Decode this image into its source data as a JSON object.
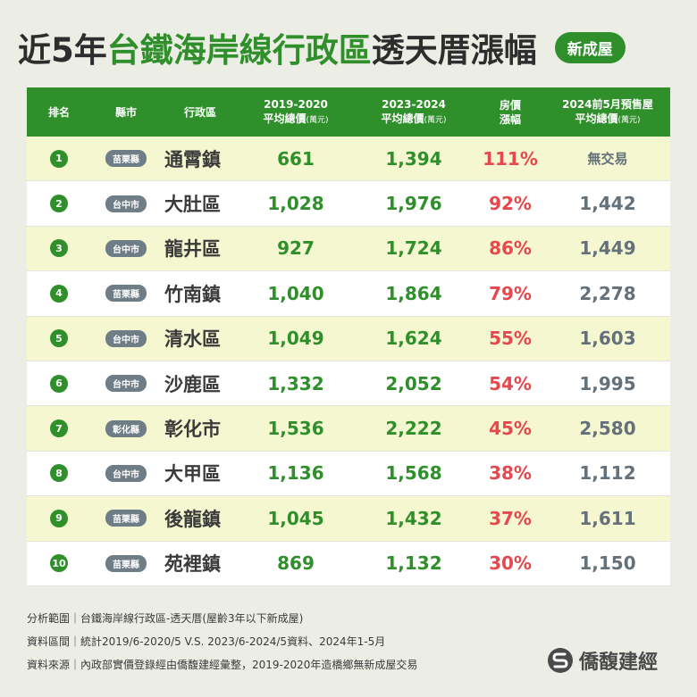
{
  "title": {
    "part1": "近5年",
    "part2": "台鐵海岸線行政區",
    "part3": "透天厝漲幅",
    "badge": "新成屋"
  },
  "headers": {
    "rank": "排名",
    "county": "縣市",
    "district": "行政區",
    "v1_line1": "2019-2020",
    "v1_line2": "平均總價",
    "v1_unit": "(萬元)",
    "v2_line1": "2023-2024",
    "v2_line2": "平均總價",
    "v2_unit": "(萬元)",
    "pct_line1": "房價",
    "pct_line2": "漲幅",
    "pre_line1": "2024前5月預售屋",
    "pre_line2": "平均總價",
    "pre_unit": "(萬元)"
  },
  "chart_data": {
    "type": "table",
    "columns": [
      "排名",
      "縣市",
      "行政區",
      "2019-2020平均總價(萬元)",
      "2023-2024平均總價(萬元)",
      "房價漲幅",
      "2024前5月預售屋平均總價(萬元)"
    ],
    "rows": [
      {
        "rank": "1",
        "county": "苗栗縣",
        "district": "通霄鎮",
        "v1": "661",
        "v2": "1,394",
        "pct": "111%",
        "pre": "無交易"
      },
      {
        "rank": "2",
        "county": "台中市",
        "district": "大肚區",
        "v1": "1,028",
        "v2": "1,976",
        "pct": "92%",
        "pre": "1,442"
      },
      {
        "rank": "3",
        "county": "台中市",
        "district": "龍井區",
        "v1": "927",
        "v2": "1,724",
        "pct": "86%",
        "pre": "1,449"
      },
      {
        "rank": "4",
        "county": "苗栗縣",
        "district": "竹南鎮",
        "v1": "1,040",
        "v2": "1,864",
        "pct": "79%",
        "pre": "2,278"
      },
      {
        "rank": "5",
        "county": "台中市",
        "district": "清水區",
        "v1": "1,049",
        "v2": "1,624",
        "pct": "55%",
        "pre": "1,603"
      },
      {
        "rank": "6",
        "county": "台中市",
        "district": "沙鹿區",
        "v1": "1,332",
        "v2": "2,052",
        "pct": "54%",
        "pre": "1,995"
      },
      {
        "rank": "7",
        "county": "彰化縣",
        "district": "彰化市",
        "v1": "1,536",
        "v2": "2,222",
        "pct": "45%",
        "pre": "2,580"
      },
      {
        "rank": "8",
        "county": "台中市",
        "district": "大甲區",
        "v1": "1,136",
        "v2": "1,568",
        "pct": "38%",
        "pre": "1,112"
      },
      {
        "rank": "9",
        "county": "苗栗縣",
        "district": "後龍鎮",
        "v1": "1,045",
        "v2": "1,432",
        "pct": "37%",
        "pre": "1,611"
      },
      {
        "rank": "10",
        "county": "苗栗縣",
        "district": "苑裡鎮",
        "v1": "869",
        "v2": "1,132",
        "pct": "30%",
        "pre": "1,150"
      }
    ]
  },
  "notes": [
    "分析範圍｜台鐵海岸線行政區-透天厝(屋齡3年以下新成屋)",
    "資料區間｜統計2019/6-2020/5 V.S. 2023/6-2024/5資料、2024年1-5月",
    "資料來源｜內政部實價登錄經由僑馥建經彙整，2019-2020年造橋鄉無新成屋交易"
  ],
  "logo": {
    "icon": "brand-s-icon",
    "text": "僑馥建經"
  },
  "colors": {
    "green": "#2f8f2a",
    "red": "#e5484d",
    "gray": "#64707a",
    "row_highlight": "#f4f7cf"
  }
}
